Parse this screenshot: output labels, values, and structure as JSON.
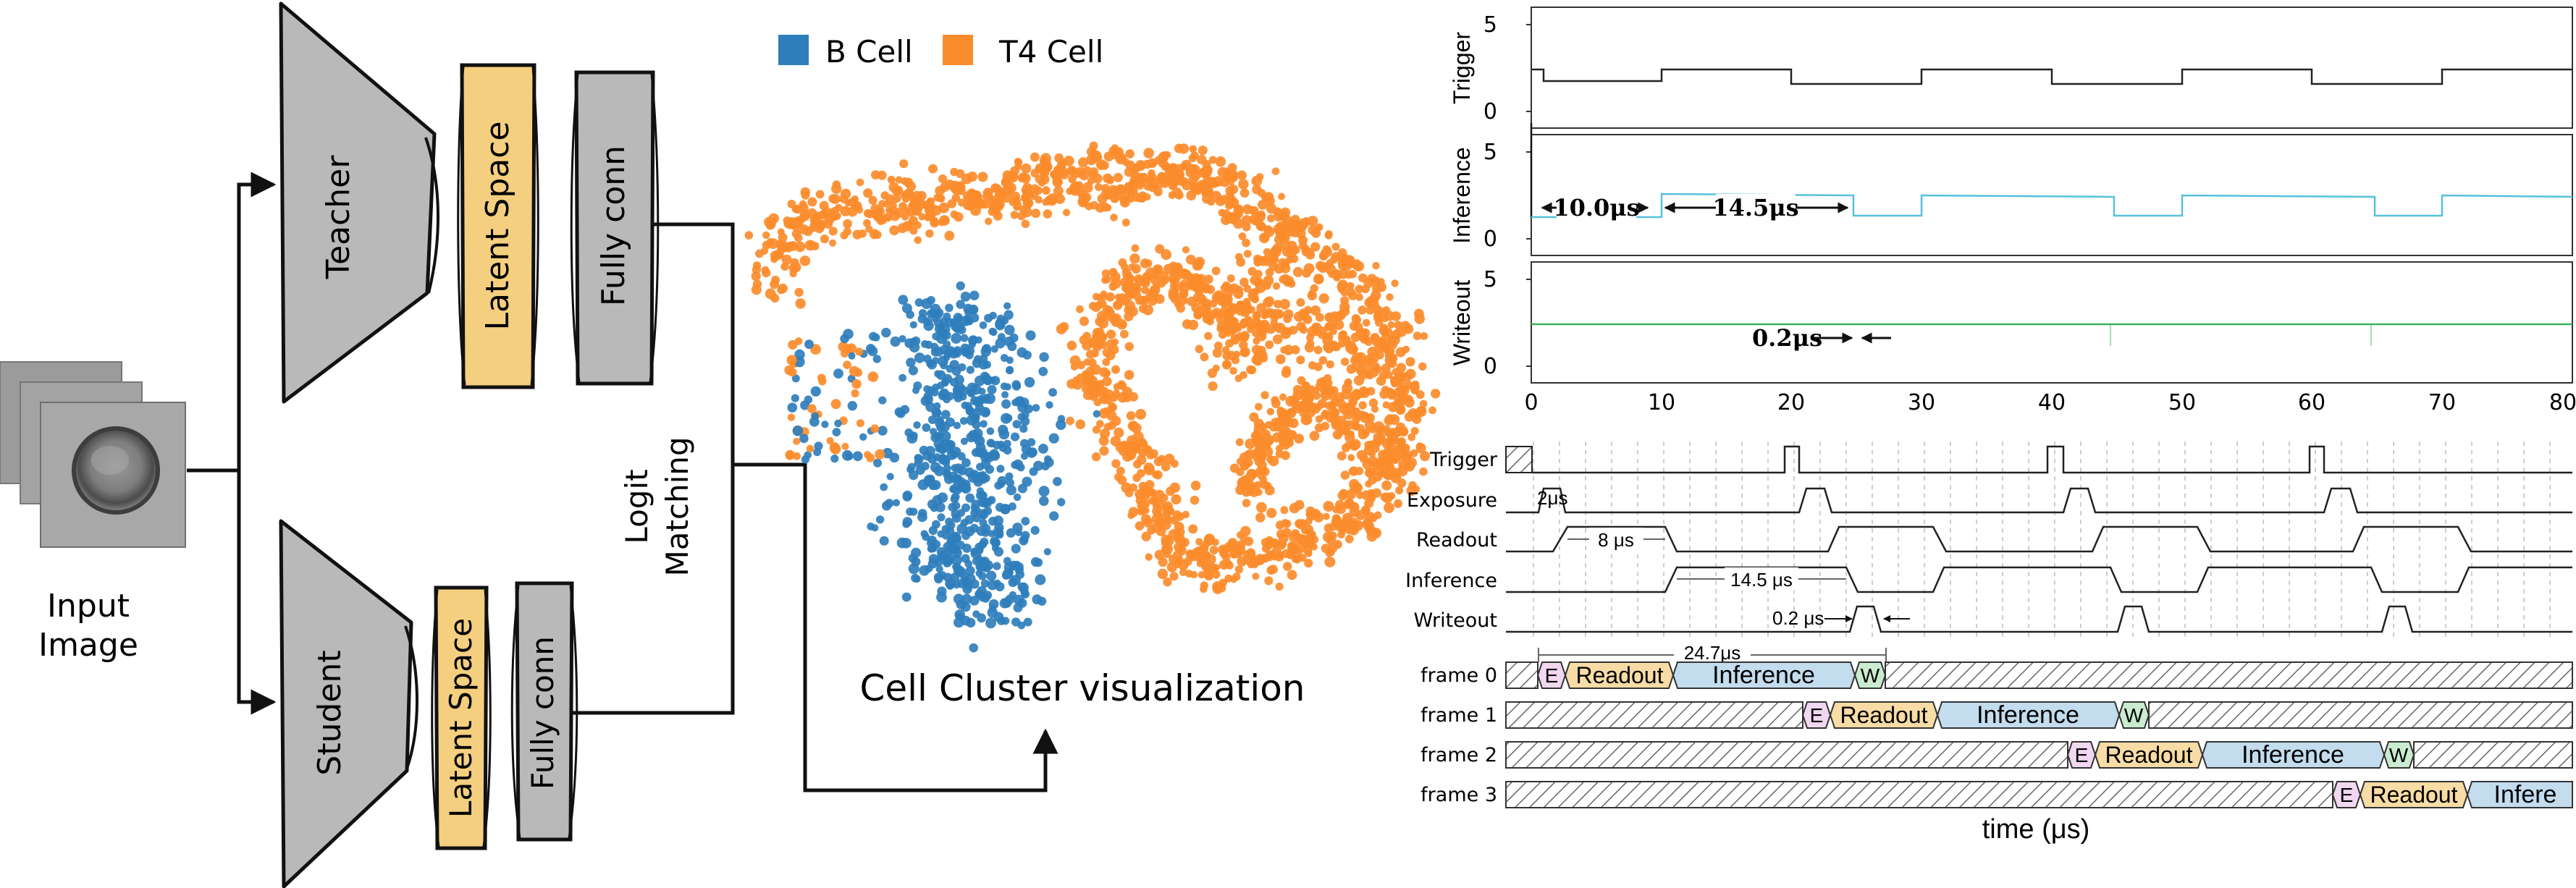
{
  "pipeline": {
    "input_label_line1": "Input",
    "input_label_line2": "Image",
    "teacher_label": "Teacher",
    "student_label": "Student",
    "latent_space_label": "Latent Space",
    "fully_conn_label": "Fully conn",
    "logit_line1": "Logit",
    "logit_line2": "Matching",
    "cluster_title": "Cell Cluster visualization",
    "colors": {
      "trapezoid": "#b9b9b9",
      "latent": "#f4cf7f",
      "fc": "#b9b9b9",
      "outline": "#111111"
    }
  },
  "cluster": {
    "legend": [
      {
        "label": "B Cell",
        "color": "#2f7ebc"
      },
      {
        "label": "T4 Cell",
        "color": "#fb8c2c"
      }
    ]
  },
  "scope": {
    "panels": [
      {
        "ylabel": "Trigger",
        "color": "#222222"
      },
      {
        "ylabel": "Inference",
        "color": "#56c2dc"
      },
      {
        "ylabel": "Writeout",
        "color": "#3cb35a"
      }
    ],
    "yticks": [
      "0",
      "5"
    ],
    "xticks": [
      "0",
      "10",
      "20",
      "30",
      "40",
      "50",
      "60",
      "70",
      "80"
    ],
    "annot_10": "10.0μs",
    "annot_14": "14.5μs",
    "annot_02": "0.2μs"
  },
  "timing": {
    "signals": [
      "Trigger",
      "Exposure",
      "Readout",
      "Inference",
      "Writeout"
    ],
    "annot_2us": "2μs",
    "annot_8us": "8 μs",
    "annot_14us": "14.5 μs",
    "annot_02us": "0.2 μs",
    "annot_247": "24.7μs",
    "frames": [
      "frame 0",
      "frame 1",
      "frame 2",
      "frame 3"
    ],
    "seg_E": "E",
    "seg_Readout": "Readout",
    "seg_Inference": "Inference",
    "seg_Infere": "Infere",
    "seg_W": "W",
    "xlabel": "time (μs)",
    "colors": {
      "E": "#f1d7ef",
      "Readout": "#f8dca5",
      "Inference": "#c3dcee",
      "W": "#c9ebcf"
    }
  }
}
